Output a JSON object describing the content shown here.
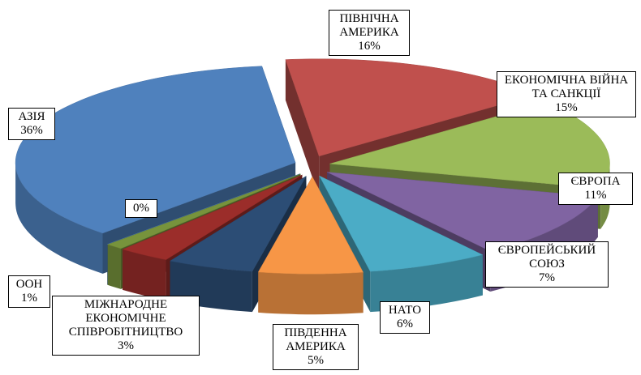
{
  "chart_data": {
    "type": "pie3d",
    "categories": [
      "ПІВНІЧНА АМЕРИКА",
      "ЕКОНОМІЧНА ВІЙНА ТА САНКЦІЇ",
      "ЄВРОПА",
      "ЄВРОПЕЙСЬКИЙ СОЮЗ",
      "НАТО",
      "ПІВДЕННА АМЕРИКА",
      "МІЖНАРОДНЕ ЕКОНОМІЧНЕ СПІВРОБІТНИЦТВО",
      "ООН",
      null,
      "АЗІЯ"
    ],
    "values": [
      16,
      15,
      11,
      7,
      6,
      5,
      3,
      1,
      0,
      36
    ],
    "value_labels": [
      "16%",
      "15%",
      "11%",
      "7%",
      "6%",
      "5%",
      "3%",
      "1%",
      "0%",
      "36%"
    ],
    "colors": [
      "#c0504d",
      "#9bbb59",
      "#8064a2",
      "#4bacc6",
      "#f79646",
      "#2c4d75",
      "#9b2d2a",
      "#77933c",
      "#4f81bd",
      "#4f81bd"
    ]
  }
}
